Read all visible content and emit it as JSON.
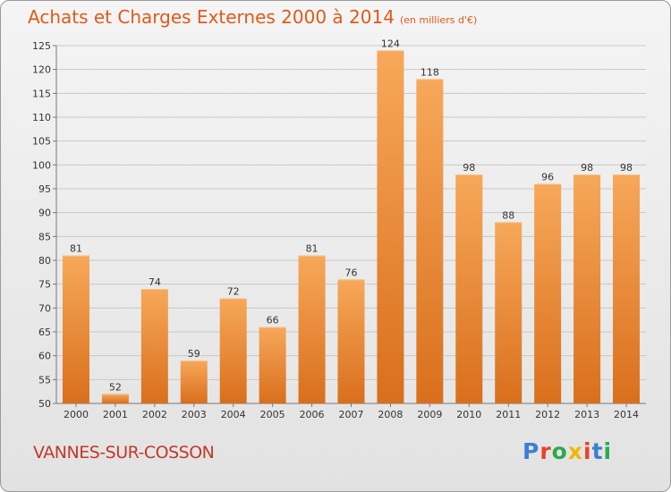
{
  "header": {
    "title": "Achats et Charges Externes 2000 à 2014",
    "unit": "(en milliers d'€)"
  },
  "footer": {
    "town": "VANNES-SUR-COSSON",
    "brand": "Proxiti",
    "brand_colors": [
      "#3a7fd4",
      "#e8432a",
      "#2fa84f",
      "#f2b705",
      "#e8432a",
      "#3a7fd4",
      "#2fa84f"
    ]
  },
  "colors": {
    "bar_light": "#f7a85a",
    "bar_dark": "#d96f1c",
    "title": "#e05a1a",
    "town": "#c0392b"
  },
  "chart_data": {
    "type": "bar",
    "title": "Achats et Charges Externes 2000 à 2014",
    "subtitle": "(en milliers d'€)",
    "xlabel": "",
    "ylabel": "",
    "categories": [
      "2000",
      "2001",
      "2002",
      "2003",
      "2004",
      "2005",
      "2006",
      "2007",
      "2008",
      "2009",
      "2010",
      "2011",
      "2012",
      "2013",
      "2014"
    ],
    "values": [
      81,
      52,
      74,
      59,
      72,
      66,
      81,
      76,
      124,
      118,
      98,
      88,
      96,
      98,
      98
    ],
    "ylim": [
      50,
      125
    ],
    "yticks": [
      50,
      55,
      60,
      65,
      70,
      75,
      80,
      85,
      90,
      95,
      100,
      105,
      110,
      115,
      120,
      125
    ],
    "grid": true,
    "legend": "none"
  }
}
